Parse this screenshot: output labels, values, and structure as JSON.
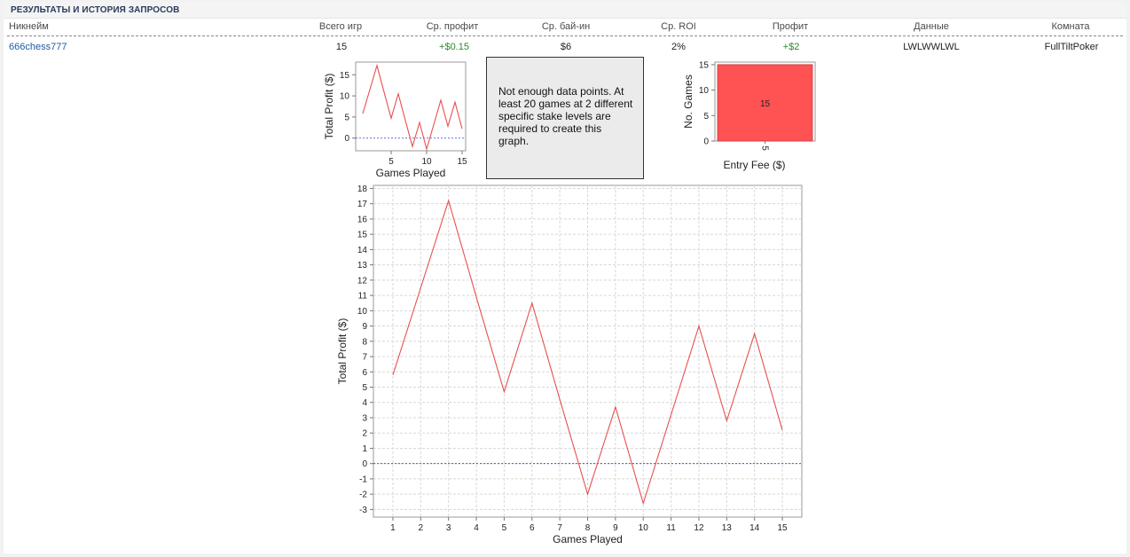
{
  "section": {
    "title": "РЕЗУЛЬТАТЫ И ИСТОРИЯ ЗАПРОСОВ"
  },
  "table": {
    "headers": {
      "nickname": "Никнейм",
      "games": "Всего игр",
      "avg_profit": "Ср. профит",
      "avg_buyin": "Ср. бай-ин",
      "avg_roi": "Ср. ROI",
      "profit": "Профит",
      "data": "Данные",
      "room": "Комната"
    },
    "row": {
      "nickname": "666chess777",
      "games": "15",
      "avg_profit": "+$0.15",
      "avg_buyin": "$6",
      "avg_roi": "2%",
      "profit": "+$2",
      "data": "LWLWWLWL",
      "room": "FullTiltPoker"
    }
  },
  "message": {
    "text": "Not enough data points. At least 20 games at 2 different specific stake levels are required to create this graph."
  },
  "colors": {
    "line": "#e85050",
    "bar": "#ff5252",
    "zero_line": "#3a3ad0"
  },
  "chart_data": [
    {
      "id": "profit-small",
      "type": "line",
      "xlabel": "Games Played",
      "ylabel": "Total Profit ($)",
      "x": [
        1,
        2,
        3,
        4,
        5,
        6,
        7,
        8,
        9,
        10,
        11,
        12,
        13,
        14,
        15
      ],
      "y": [
        5.8,
        11.5,
        17.2,
        10.9,
        4.7,
        10.5,
        4.2,
        -2.0,
        3.7,
        -2.6,
        3.2,
        9.0,
        2.8,
        8.5,
        2.2
      ],
      "xlim": [
        0,
        15.5
      ],
      "ylim": [
        -3,
        18
      ],
      "xticks": [
        5,
        10,
        15
      ],
      "yticks": [
        0,
        5,
        10,
        15
      ],
      "grid": false,
      "zero_line": true
    },
    {
      "id": "games-by-fee",
      "type": "bar",
      "xlabel": "Entry Fee ($)",
      "ylabel": "No. Games",
      "categories": [
        "5"
      ],
      "values": [
        15
      ],
      "value_labels": [
        "15"
      ],
      "ylim": [
        0,
        15.5
      ],
      "yticks": [
        0,
        5,
        10,
        15
      ]
    },
    {
      "id": "profit-large",
      "type": "line",
      "xlabel": "Games Played",
      "ylabel": "Total Profit ($)",
      "x": [
        1,
        2,
        3,
        4,
        5,
        6,
        7,
        8,
        9,
        10,
        11,
        12,
        13,
        14,
        15
      ],
      "y": [
        5.8,
        11.5,
        17.2,
        10.9,
        4.7,
        10.5,
        4.2,
        -2.0,
        3.7,
        -2.6,
        3.2,
        9.0,
        2.8,
        8.5,
        2.2
      ],
      "xlim": [
        0.3,
        15.7
      ],
      "ylim": [
        -3.5,
        18.2
      ],
      "xticks": [
        1,
        2,
        3,
        4,
        5,
        6,
        7,
        8,
        9,
        10,
        11,
        12,
        13,
        14,
        15
      ],
      "yticks": [
        -3,
        -2,
        -1,
        0,
        1,
        2,
        3,
        4,
        5,
        6,
        7,
        8,
        9,
        10,
        11,
        12,
        13,
        14,
        15,
        16,
        17,
        18
      ],
      "grid": true,
      "zero_line": true
    }
  ]
}
